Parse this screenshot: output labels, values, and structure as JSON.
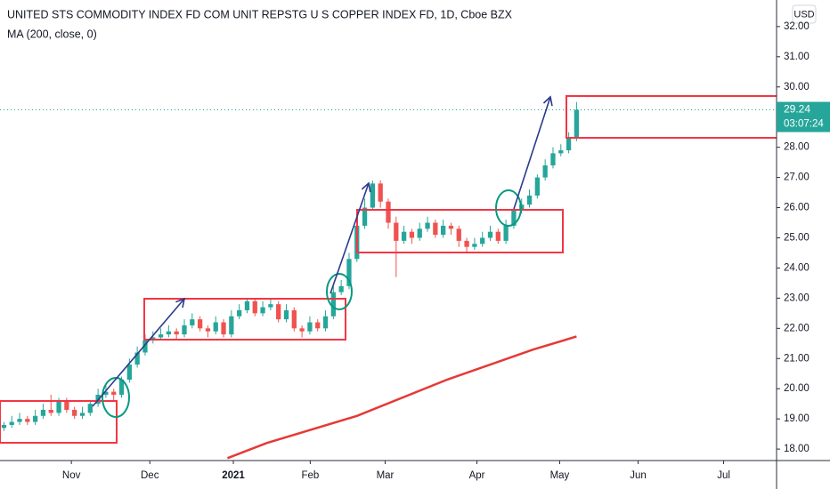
{
  "chart_data": {
    "type": "candlestick",
    "title": "UNITED STS COMMODITY INDEX FD COM UNIT REPSTG U S COPPER INDEX FD, 1D, Cboe BZX",
    "currency": "USD",
    "x": [
      1,
      3,
      5,
      7,
      9,
      11,
      13,
      15,
      17,
      19,
      21,
      23,
      25,
      27,
      29,
      31,
      33,
      35,
      37,
      39,
      41,
      43,
      45,
      47,
      49,
      51,
      53,
      55,
      57,
      59,
      61,
      63,
      65,
      67,
      69,
      71,
      73,
      75,
      77,
      79,
      81,
      83,
      85,
      87,
      89,
      91,
      93,
      95,
      97,
      99,
      101,
      103,
      105,
      107,
      109,
      111,
      113,
      115,
      117,
      119,
      121,
      123,
      125,
      127,
      129,
      131,
      133,
      135,
      137,
      139,
      141,
      143,
      145,
      147
    ],
    "open": [
      18.7,
      18.8,
      18.9,
      19.0,
      18.9,
      19.1,
      19.3,
      19.2,
      19.6,
      19.3,
      19.1,
      19.2,
      19.5,
      19.8,
      19.9,
      19.8,
      20.3,
      20.8,
      21.2,
      21.6,
      21.7,
      21.8,
      21.9,
      21.8,
      22.1,
      22.3,
      22.0,
      21.9,
      22.2,
      21.8,
      22.4,
      22.6,
      22.9,
      22.5,
      22.7,
      22.8,
      22.3,
      22.6,
      22.0,
      21.9,
      22.2,
      22.0,
      22.4,
      23.2,
      23.4,
      24.3,
      25.4,
      26.0,
      26.8,
      26.2,
      25.5,
      24.9,
      25.2,
      25.0,
      25.3,
      25.5,
      25.1,
      25.4,
      25.3,
      24.9,
      24.7,
      24.8,
      25.0,
      25.2,
      24.9,
      25.4,
      25.9,
      26.1,
      26.4,
      27.0,
      27.4,
      27.8,
      27.9,
      28.3
    ],
    "high": [
      18.9,
      19.1,
      19.2,
      19.1,
      19.3,
      19.5,
      19.8,
      19.7,
      19.7,
      19.4,
      19.4,
      19.6,
      20.0,
      20.1,
      20.0,
      20.4,
      21.0,
      21.4,
      21.8,
      21.9,
      22.0,
      22.1,
      22.0,
      22.3,
      22.5,
      22.4,
      22.1,
      22.4,
      22.3,
      22.6,
      22.8,
      23.0,
      23.0,
      22.9,
      23.0,
      22.9,
      22.8,
      22.7,
      22.1,
      22.4,
      22.3,
      22.6,
      23.4,
      23.6,
      24.5,
      25.6,
      26.3,
      26.9,
      26.9,
      26.3,
      25.7,
      25.4,
      25.3,
      25.5,
      25.7,
      25.6,
      25.6,
      25.5,
      25.4,
      25.0,
      25.0,
      25.2,
      25.4,
      25.3,
      25.6,
      26.0,
      26.3,
      26.6,
      27.1,
      27.6,
      28.0,
      28.1,
      28.5,
      29.5
    ],
    "low": [
      18.6,
      18.7,
      18.8,
      18.8,
      18.8,
      19.0,
      19.1,
      19.1,
      19.2,
      19.0,
      19.0,
      19.1,
      19.4,
      19.7,
      19.6,
      19.7,
      20.2,
      20.7,
      21.1,
      21.5,
      21.6,
      21.7,
      21.6,
      21.7,
      22.0,
      21.9,
      21.7,
      21.8,
      21.7,
      21.7,
      22.3,
      22.5,
      22.4,
      22.4,
      22.6,
      22.2,
      22.2,
      21.9,
      21.7,
      21.8,
      21.9,
      21.9,
      22.3,
      23.1,
      23.3,
      24.2,
      25.3,
      25.9,
      26.0,
      25.3,
      23.7,
      24.8,
      24.8,
      24.9,
      25.2,
      25.0,
      25.0,
      25.1,
      24.7,
      24.5,
      24.6,
      24.7,
      24.9,
      24.8,
      24.8,
      25.3,
      25.8,
      26.0,
      26.3,
      26.9,
      27.3,
      27.7,
      27.8,
      28.2
    ],
    "close": [
      18.8,
      18.9,
      19.0,
      18.9,
      19.1,
      19.3,
      19.2,
      19.6,
      19.3,
      19.1,
      19.2,
      19.5,
      19.8,
      19.9,
      19.8,
      20.3,
      20.8,
      21.2,
      21.6,
      21.7,
      21.8,
      21.9,
      21.8,
      22.1,
      22.3,
      22.0,
      21.9,
      22.2,
      21.8,
      22.4,
      22.6,
      22.9,
      22.5,
      22.7,
      22.8,
      22.3,
      22.6,
      22.0,
      21.9,
      22.2,
      22.0,
      22.4,
      23.2,
      23.4,
      24.3,
      25.4,
      26.0,
      26.8,
      26.2,
      25.5,
      24.9,
      25.2,
      25.0,
      25.3,
      25.5,
      25.1,
      25.4,
      25.3,
      24.9,
      24.7,
      24.8,
      25.0,
      25.2,
      24.9,
      25.4,
      25.9,
      26.1,
      26.4,
      27.0,
      27.4,
      27.8,
      27.9,
      28.3,
      29.24
    ],
    "up_color": "#26a69a",
    "down_color": "#ef5350",
    "ma": {
      "name": "MA (200, close, 0)",
      "color": "#e53935",
      "x": [
        58,
        68,
        91,
        114,
        136,
        147
      ],
      "values": [
        17.7,
        18.2,
        19.1,
        20.3,
        21.3,
        21.73
      ]
    },
    "last_price": {
      "value": 29.24,
      "label": "29.24",
      "countdown": "03:07:24",
      "color": "#26a69a"
    },
    "xlim": [
      0,
      198
    ],
    "xticks": [
      {
        "value": 18.2,
        "label": "Nov"
      },
      {
        "value": 38.2,
        "label": "Dec"
      },
      {
        "value": 59.5,
        "label": "2021"
      },
      {
        "value": 79.1,
        "label": "Feb"
      },
      {
        "value": 98.2,
        "label": "Mar"
      },
      {
        "value": 121.6,
        "label": "Apr"
      },
      {
        "value": 142.7,
        "label": "May"
      },
      {
        "value": 162.7,
        "label": "Jun"
      },
      {
        "value": 184.5,
        "label": "Jul"
      }
    ],
    "ylim": [
      17.62,
      32.88
    ],
    "yticks": [
      {
        "value": 18,
        "label": "18.00"
      },
      {
        "value": 19,
        "label": "19.00"
      },
      {
        "value": 20,
        "label": "20.00"
      },
      {
        "value": 21,
        "label": "21.00"
      },
      {
        "value": 22,
        "label": "22.00"
      },
      {
        "value": 23,
        "label": "23.00"
      },
      {
        "value": 24,
        "label": "24.00"
      },
      {
        "value": 25,
        "label": "25.00"
      },
      {
        "value": 26,
        "label": "26.00"
      },
      {
        "value": 27,
        "label": "27.00"
      },
      {
        "value": 28,
        "label": "28.00"
      },
      {
        "value": 29,
        "label": "29.00"
      },
      {
        "value": 30,
        "label": "30.00"
      },
      {
        "value": 31,
        "label": "31.00"
      },
      {
        "value": 32,
        "label": "32.00"
      }
    ]
  }
}
